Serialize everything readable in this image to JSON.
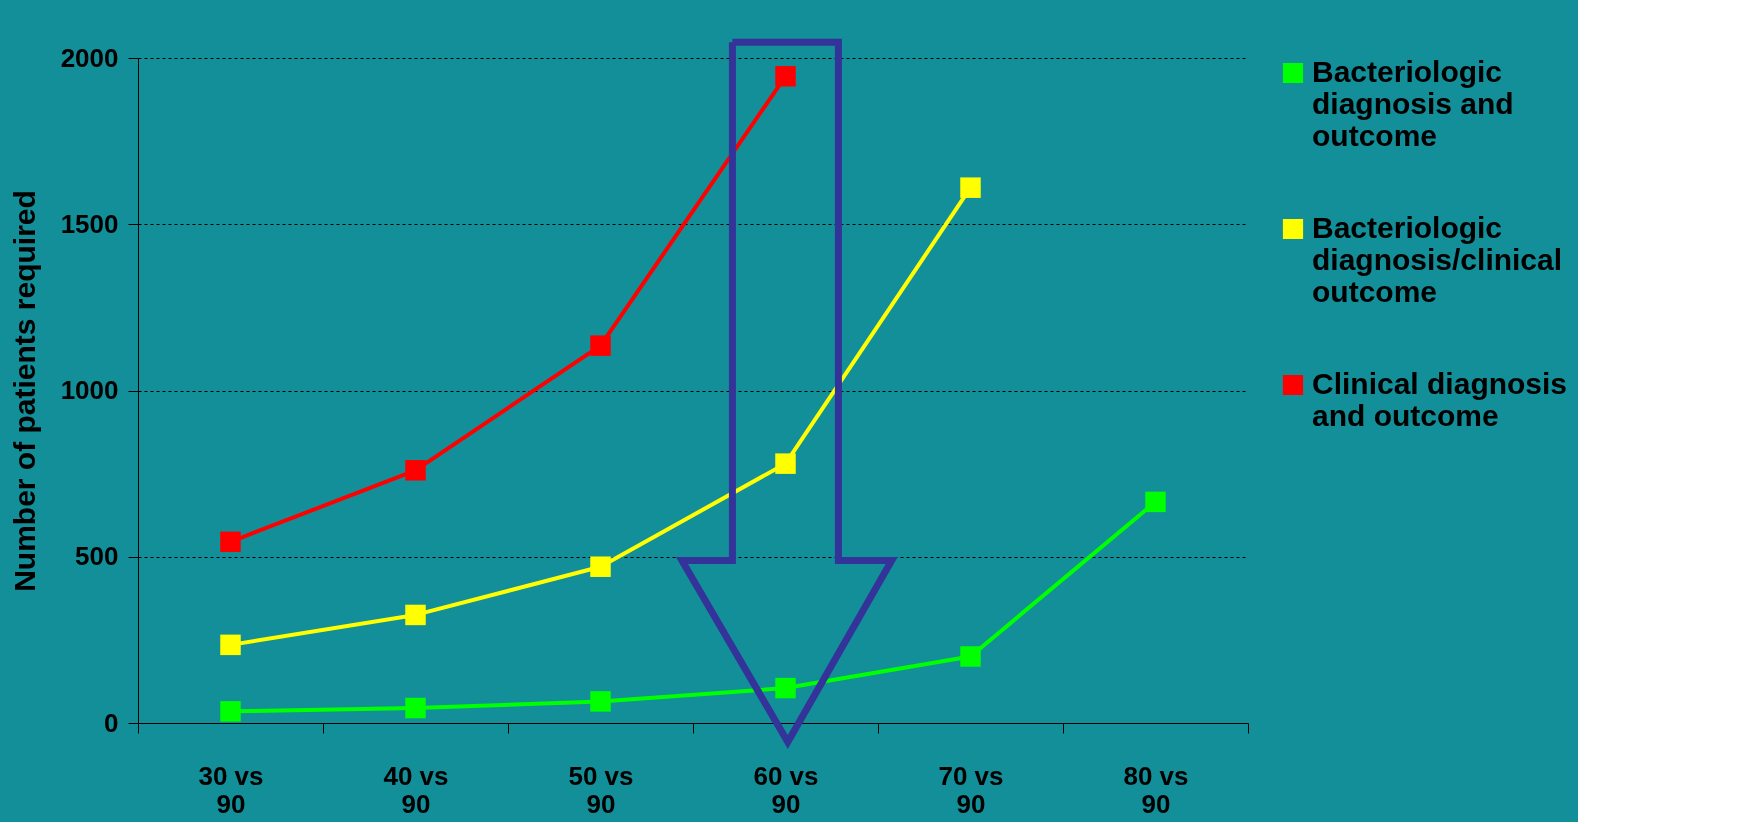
{
  "chart_data": {
    "type": "line",
    "ylabel": "Number of patients required",
    "categories": [
      "30 vs 90",
      "40 vs 90",
      "50 vs 90",
      "60 vs 90",
      "70 vs 90",
      "80 vs 90"
    ],
    "series": [
      {
        "name": "Bacteriologic diagnosis and outcome",
        "color": "#00ff00",
        "values": [
          35,
          45,
          65,
          105,
          200,
          665
        ]
      },
      {
        "name": "Bacteriologic diagnosis/clinical outcome",
        "color": "#ffff00",
        "values": [
          235,
          325,
          470,
          780,
          1610,
          null
        ]
      },
      {
        "name": "Clinical diagnosis and outcome",
        "color": "#ff0000",
        "values": [
          545,
          760,
          1135,
          1945,
          null,
          null
        ]
      }
    ],
    "ylim": [
      0,
      2000
    ],
    "yticks": [
      0,
      500,
      1000,
      1500,
      2000
    ],
    "grid": "y",
    "legend": "right",
    "marker": "square",
    "line_style": "solid"
  }
}
